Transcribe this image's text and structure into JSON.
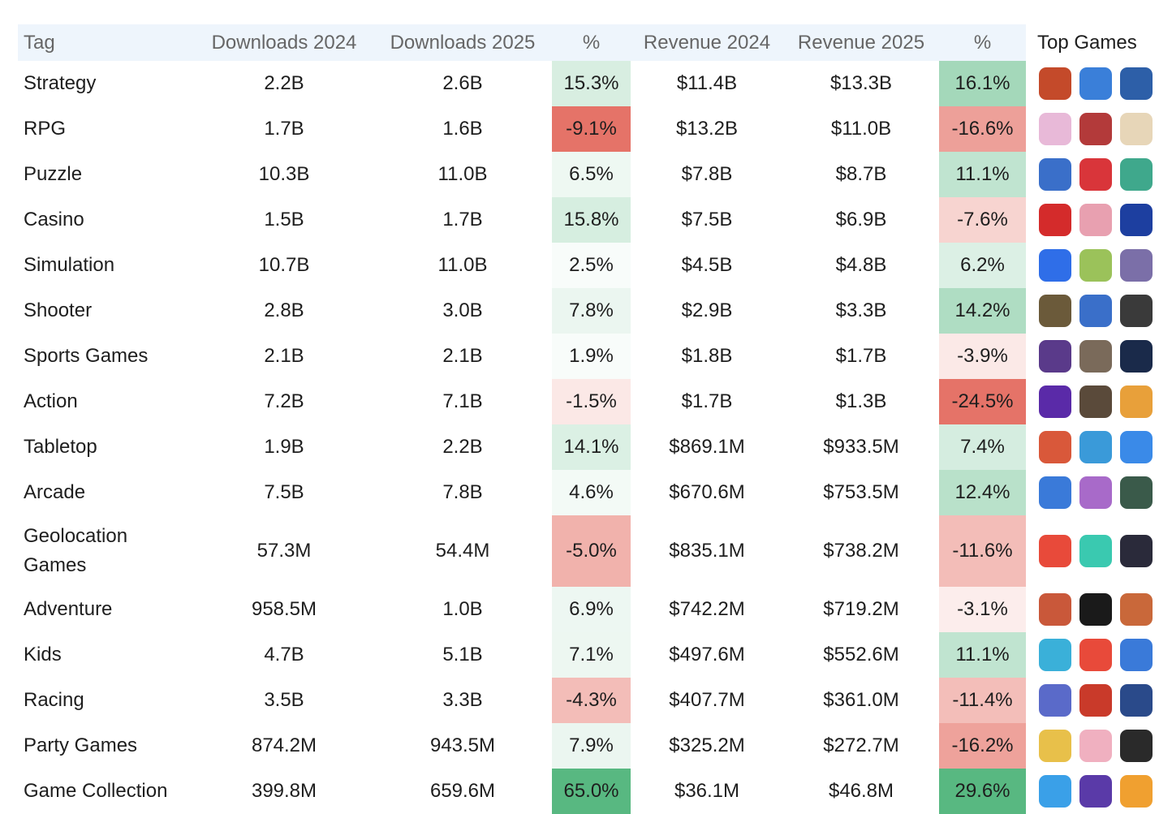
{
  "table": {
    "header": [
      "Tag",
      "Downloads 2024",
      "Downloads 2025",
      "%",
      "Revenue 2024",
      "Revenue 2025",
      "%",
      "Top Games"
    ],
    "rows": [
      [
        "Strategy",
        "2.2B",
        "2.6B",
        "15.3%",
        "$11.4B",
        "$13.3B",
        "16.1%"
      ],
      [
        "RPG",
        "1.7B",
        "1.6B",
        "-9.1%",
        "$13.2B",
        "$11.0B",
        "-16.6%"
      ],
      [
        "Puzzle",
        "10.3B",
        "11.0B",
        "6.5%",
        "$7.8B",
        "$8.7B",
        "11.1%"
      ],
      [
        "Casino",
        "1.5B",
        "1.7B",
        "15.8%",
        "$7.5B",
        "$6.9B",
        "-7.6%"
      ],
      [
        "Simulation",
        "10.7B",
        "11.0B",
        "2.5%",
        "$4.5B",
        "$4.8B",
        "6.2%"
      ],
      [
        "Shooter",
        "2.8B",
        "3.0B",
        "7.8%",
        "$2.9B",
        "$3.3B",
        "14.2%"
      ],
      [
        "Sports Games",
        "2.1B",
        "2.1B",
        "1.9%",
        "$1.8B",
        "$1.7B",
        "-3.9%"
      ],
      [
        "Action",
        "7.2B",
        "7.1B",
        "-1.5%",
        "$1.7B",
        "$1.3B",
        "-24.5%"
      ],
      [
        "Tabletop",
        "1.9B",
        "2.2B",
        "14.1%",
        "$869.1M",
        "$933.5M",
        "7.4%"
      ],
      [
        "Arcade",
        "7.5B",
        "7.8B",
        "4.6%",
        "$670.6M",
        "$753.5M",
        "12.4%"
      ],
      [
        "Geolocation Games",
        "57.3M",
        "54.4M",
        "-5.0%",
        "$835.1M",
        "$738.2M",
        "-11.6%"
      ],
      [
        "Adventure",
        "958.5M",
        "1.0B",
        "6.9%",
        "$742.2M",
        "$719.2M",
        "-3.1%"
      ],
      [
        "Kids",
        "4.7B",
        "5.1B",
        "7.1%",
        "$497.6M",
        "$552.6M",
        "11.1%"
      ],
      [
        "Racing",
        "3.5B",
        "3.3B",
        "-4.3%",
        "$407.7M",
        "$361.0M",
        "-11.4%"
      ],
      [
        "Party Games",
        "874.2M",
        "943.5M",
        "7.9%",
        "$325.2M",
        "$272.7M",
        "-16.2%"
      ],
      [
        "Game Collection",
        "399.8M",
        "659.6M",
        "65.0%",
        "$36.1M",
        "$46.8M",
        "29.6%"
      ]
    ]
  }
}
